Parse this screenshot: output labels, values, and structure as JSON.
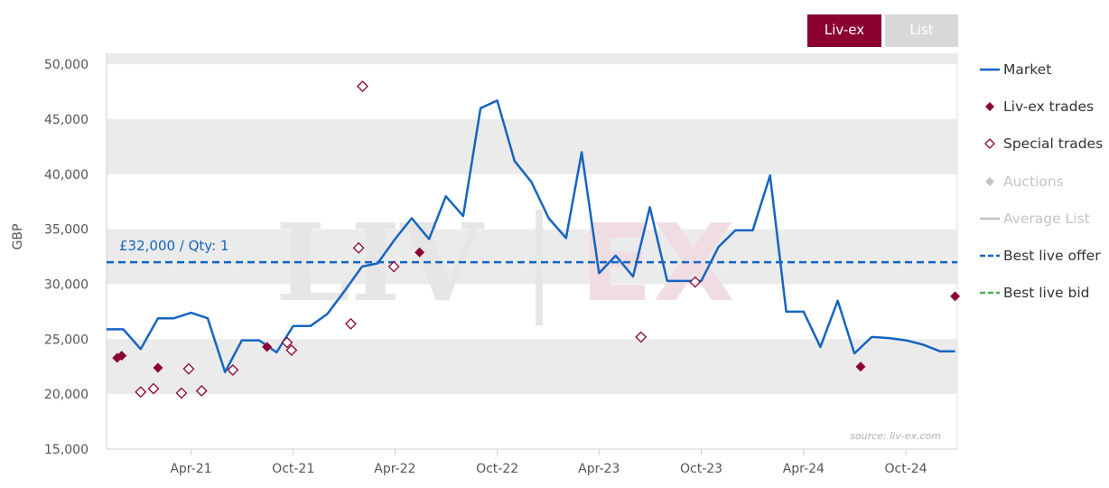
{
  "toggles": {
    "livex_label": "Liv-ex",
    "list_label": "List",
    "livex_color": "#8c0032",
    "list_color": "#d8d8d8"
  },
  "watermark": {
    "left": "LIV",
    "right": "EX"
  },
  "source_label": "source: liv-ex.com",
  "best_offer_label": "£32,000 / Qty: 1",
  "legend": [
    {
      "label": "Market",
      "symbol": "line",
      "color": "#1565c0",
      "muted": false
    },
    {
      "label": "Liv-ex trades",
      "symbol": "diamond-filled",
      "color": "#8c0032",
      "muted": false
    },
    {
      "label": "Special trades",
      "symbol": "diamond-open",
      "color": "#8c0032",
      "muted": false
    },
    {
      "label": "Auctions",
      "symbol": "diamond-filled",
      "color": "#c4c4c4",
      "muted": true
    },
    {
      "label": "Average List",
      "symbol": "line",
      "color": "#c4c4c4",
      "muted": true
    },
    {
      "label": "Best live offer",
      "symbol": "dash",
      "color": "#1565c0",
      "muted": false
    },
    {
      "label": "Best live bid",
      "symbol": "dash",
      "color": "#4caf50",
      "muted": false
    }
  ],
  "chart_data": {
    "type": "line",
    "ylabel": "GBP",
    "xlabel": "",
    "ylim": [
      15000,
      51000
    ],
    "yticks": [
      15000,
      20000,
      25000,
      30000,
      35000,
      40000,
      45000,
      50000
    ],
    "ytick_labels": [
      "15,000",
      "20,000",
      "25,000",
      "30,000",
      "35,000",
      "40,000",
      "45,000",
      "50,000"
    ],
    "xlim": [
      "2020-11-01",
      "2025-01-01"
    ],
    "xticks": [
      {
        "date": "2021-04-01",
        "label": "Apr-21"
      },
      {
        "date": "2021-10-01",
        "label": "Oct-21"
      },
      {
        "date": "2022-04-01",
        "label": "Apr-22"
      },
      {
        "date": "2022-10-01",
        "label": "Oct-22"
      },
      {
        "date": "2023-04-01",
        "label": "Apr-23"
      },
      {
        "date": "2023-10-01",
        "label": "Oct-23"
      },
      {
        "date": "2024-04-01",
        "label": "Apr-24"
      },
      {
        "date": "2024-10-01",
        "label": "Oct-24"
      }
    ],
    "grid": "alternating horizontal bands",
    "legend_position": "right",
    "series": [
      {
        "name": "Market",
        "color": "#1565c0",
        "points": [
          [
            "2020-11-01",
            25900
          ],
          [
            "2020-12-01",
            25900
          ],
          [
            "2021-01-01",
            24100
          ],
          [
            "2021-02-01",
            26900
          ],
          [
            "2021-03-01",
            26900
          ],
          [
            "2021-04-01",
            27400
          ],
          [
            "2021-05-01",
            26900
          ],
          [
            "2021-06-01",
            22000
          ],
          [
            "2021-07-01",
            24900
          ],
          [
            "2021-08-01",
            24900
          ],
          [
            "2021-09-01",
            23800
          ],
          [
            "2021-10-01",
            26200
          ],
          [
            "2021-11-01",
            26200
          ],
          [
            "2021-12-01",
            27300
          ],
          [
            "2022-01-01",
            29400
          ],
          [
            "2022-02-01",
            31600
          ],
          [
            "2022-03-01",
            31900
          ],
          [
            "2022-04-01",
            34100
          ],
          [
            "2022-05-01",
            36000
          ],
          [
            "2022-06-01",
            34100
          ],
          [
            "2022-07-01",
            38000
          ],
          [
            "2022-08-01",
            36200
          ],
          [
            "2022-09-01",
            46000
          ],
          [
            "2022-10-01",
            46700
          ],
          [
            "2022-11-01",
            41200
          ],
          [
            "2022-12-01",
            39300
          ],
          [
            "2023-01-01",
            36000
          ],
          [
            "2023-02-01",
            34200
          ],
          [
            "2023-03-01",
            42000
          ],
          [
            "2023-04-01",
            31000
          ],
          [
            "2023-05-01",
            32600
          ],
          [
            "2023-06-01",
            30700
          ],
          [
            "2023-07-01",
            37000
          ],
          [
            "2023-08-01",
            30300
          ],
          [
            "2023-09-01",
            30300
          ],
          [
            "2023-10-01",
            30300
          ],
          [
            "2023-11-01",
            33400
          ],
          [
            "2023-12-01",
            34900
          ],
          [
            "2024-01-01",
            34900
          ],
          [
            "2024-02-01",
            39900
          ],
          [
            "2024-03-01",
            27500
          ],
          [
            "2024-04-01",
            27500
          ],
          [
            "2024-05-01",
            24300
          ],
          [
            "2024-06-01",
            28500
          ],
          [
            "2024-07-01",
            23700
          ],
          [
            "2024-08-01",
            25200
          ],
          [
            "2024-09-01",
            25100
          ],
          [
            "2024-10-01",
            24900
          ],
          [
            "2024-11-01",
            24500
          ],
          [
            "2024-12-01",
            23900
          ],
          [
            "2024-12-28",
            23900
          ]
        ]
      },
      {
        "name": "Liv-ex trades",
        "color": "#8c0032",
        "points": [
          [
            "2020-11-20",
            23300
          ],
          [
            "2020-11-28",
            23500
          ],
          [
            "2021-02-01",
            22400
          ],
          [
            "2021-08-15",
            24300
          ],
          [
            "2022-05-15",
            32900
          ],
          [
            "2024-07-12",
            22500
          ],
          [
            "2024-12-28",
            28900
          ]
        ]
      },
      {
        "name": "Special trades",
        "color": "#8c0032",
        "points": [
          [
            "2021-01-01",
            20200
          ],
          [
            "2021-01-24",
            20500
          ],
          [
            "2021-03-15",
            20100
          ],
          [
            "2021-03-28",
            22300
          ],
          [
            "2021-04-20",
            20300
          ],
          [
            "2021-06-15",
            22200
          ],
          [
            "2021-09-20",
            24700
          ],
          [
            "2021-09-28",
            24000
          ],
          [
            "2022-01-12",
            26400
          ],
          [
            "2022-01-26",
            33300
          ],
          [
            "2022-02-02",
            48000
          ],
          [
            "2022-03-30",
            31600
          ],
          [
            "2023-06-15",
            25200
          ],
          [
            "2023-09-20",
            30200
          ]
        ]
      },
      {
        "name": "Best live offer",
        "color": "#1565c0",
        "value": 32000,
        "label": "£32,000 / Qty: 1"
      }
    ]
  }
}
